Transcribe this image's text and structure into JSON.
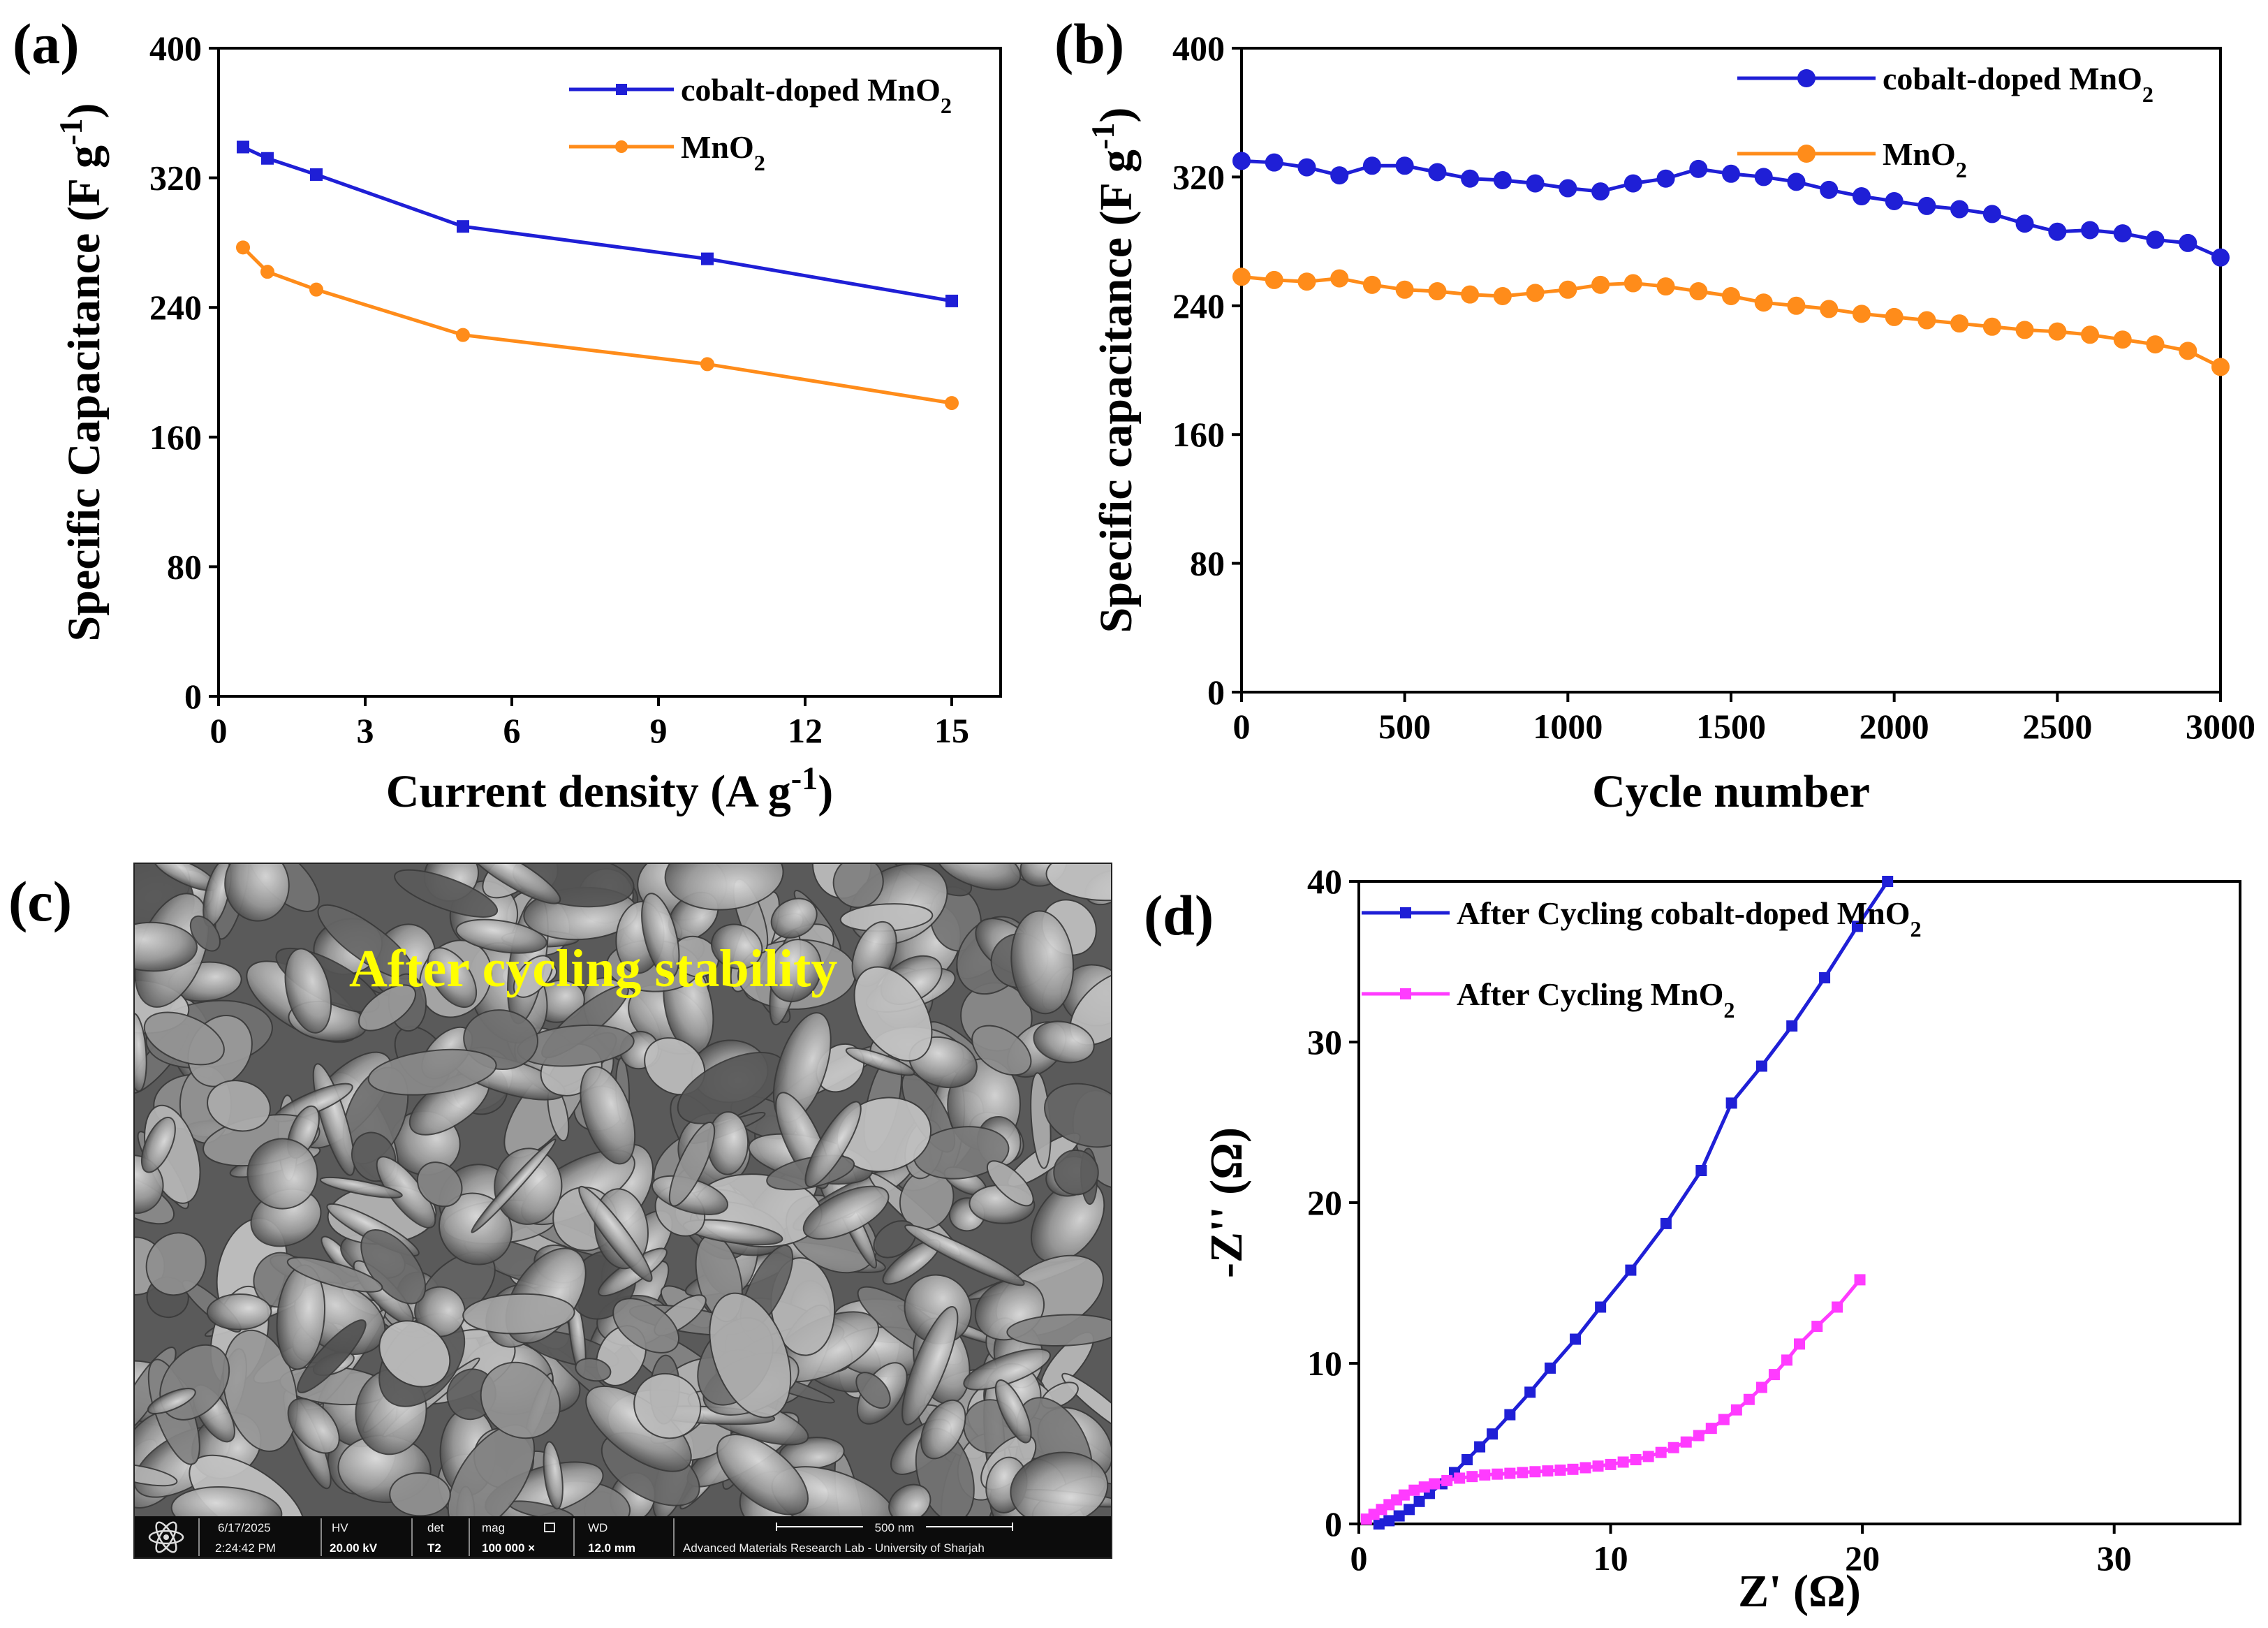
{
  "colors": {
    "blue": "#1f1fd6",
    "orange": "#ff8c1a",
    "magenta": "#ff3bff"
  },
  "panels": {
    "a": {
      "label": "(a)"
    },
    "b": {
      "label": "(b)"
    },
    "c": {
      "label": "(c)",
      "overlay_title": "After cycling stability",
      "info_bar": {
        "date": "6/17/2025",
        "time": "2:24:42 PM",
        "hv_label": "HV",
        "hv_value": "20.00 kV",
        "det_label": "det",
        "det_value": "T2",
        "mag_label": "mag",
        "mag_value": "100 000 ×",
        "wd_label": "WD",
        "wd_value": "12.0 mm",
        "scale_label": "500 nm",
        "lab": "Advanced Materials Research Lab - University of Sharjah"
      }
    },
    "d": {
      "label": "(d)"
    }
  },
  "chart_data": [
    {
      "id": "a",
      "type": "line",
      "xlabel": "Current density (A g-1)",
      "ylabel": "Specific Capacitance (F g-1)",
      "xlim": [
        0,
        16
      ],
      "ylim": [
        0,
        400
      ],
      "xticks": [
        "0",
        "3",
        "6",
        "9",
        "12",
        "15"
      ],
      "yticks": [
        "0",
        "80",
        "160",
        "240",
        "320",
        "400"
      ],
      "legend_position": "top-right",
      "series": [
        {
          "name": "cobalt-doped MnO2",
          "color": "#1f1fd6",
          "marker": "square",
          "x": [
            0.5,
            1,
            2,
            5,
            10,
            15
          ],
          "y": [
            339,
            332,
            322,
            290,
            270,
            244
          ]
        },
        {
          "name": "MnO2",
          "color": "#ff8c1a",
          "marker": "circle",
          "x": [
            0.5,
            1,
            2,
            5,
            10,
            15
          ],
          "y": [
            277,
            262,
            251,
            223,
            205,
            181
          ]
        }
      ]
    },
    {
      "id": "b",
      "type": "line",
      "xlabel": "Cycle number",
      "ylabel": "Specific capacitance (F g-1)",
      "xlim": [
        0,
        3000
      ],
      "ylim": [
        0,
        400
      ],
      "xticks": [
        "0",
        "500",
        "1000",
        "1500",
        "2000",
        "2500",
        "3000"
      ],
      "yticks": [
        "0",
        "80",
        "160",
        "240",
        "320",
        "400"
      ],
      "legend_position": "top-right",
      "series": [
        {
          "name": "cobalt-doped MnO2",
          "color": "#1f1fd6",
          "marker": "circle",
          "x": [
            0,
            100,
            200,
            300,
            400,
            500,
            600,
            700,
            800,
            900,
            1000,
            1100,
            1200,
            1300,
            1400,
            1500,
            1600,
            1700,
            1800,
            1900,
            2000,
            2100,
            2200,
            2300,
            2400,
            2500,
            2600,
            2700,
            2800,
            2900,
            3000
          ],
          "y": [
            330,
            329,
            326,
            321,
            327,
            327,
            323,
            319,
            318,
            316,
            313,
            311,
            316,
            319,
            325,
            322,
            320,
            317,
            312,
            308,
            305,
            302,
            300,
            297,
            291,
            286,
            287,
            285,
            281,
            279,
            270
          ]
        },
        {
          "name": "MnO2",
          "color": "#ff8c1a",
          "marker": "circle",
          "x": [
            0,
            100,
            200,
            300,
            400,
            500,
            600,
            700,
            800,
            900,
            1000,
            1100,
            1200,
            1300,
            1400,
            1500,
            1600,
            1700,
            1800,
            1900,
            2000,
            2100,
            2200,
            2300,
            2400,
            2500,
            2600,
            2700,
            2800,
            2900,
            3000
          ],
          "y": [
            258,
            256,
            255,
            257,
            253,
            250,
            249,
            247,
            246,
            248,
            250,
            253,
            254,
            252,
            249,
            246,
            242,
            240,
            238,
            235,
            233,
            231,
            229,
            227,
            225,
            224,
            222,
            219,
            216,
            212,
            202
          ]
        }
      ]
    },
    {
      "id": "d",
      "type": "line",
      "xlabel": "Z' (Ω)",
      "ylabel": "-Z'' (Ω)",
      "xlim": [
        0,
        35
      ],
      "ylim": [
        0,
        40
      ],
      "xticks": [
        "0",
        "10",
        "20",
        "30"
      ],
      "yticks": [
        "0",
        "10",
        "20",
        "30",
        "40"
      ],
      "legend_position": "top-left",
      "series": [
        {
          "name": "After Cycling cobalt-doped MnO2",
          "color": "#1f1fd6",
          "marker": "square",
          "x": [
            0.8,
            1.2,
            1.6,
            2.0,
            2.4,
            2.8,
            3.3,
            3.8,
            4.3,
            4.8,
            5.3,
            6.0,
            6.8,
            7.6,
            8.6,
            9.6,
            10.8,
            12.2,
            13.6,
            14.8,
            16.0,
            17.2,
            18.5,
            19.8,
            21.0
          ],
          "y": [
            0.0,
            0.2,
            0.5,
            0.9,
            1.4,
            1.9,
            2.5,
            3.2,
            4.0,
            4.8,
            5.6,
            6.8,
            8.2,
            9.7,
            11.5,
            13.5,
            15.8,
            18.7,
            22.0,
            26.2,
            28.5,
            31.0,
            34.0,
            37.2,
            40.0
          ]
        },
        {
          "name": "After Cycling MnO2",
          "color": "#ff3bff",
          "marker": "square",
          "x": [
            0.3,
            0.6,
            0.9,
            1.2,
            1.5,
            1.8,
            2.2,
            2.6,
            3.0,
            3.5,
            4.0,
            4.5,
            5.0,
            5.5,
            6.0,
            6.5,
            7.0,
            7.5,
            8.0,
            8.5,
            9.0,
            9.5,
            10.0,
            10.5,
            11.0,
            11.5,
            12.0,
            12.5,
            13.0,
            13.5,
            14.0,
            14.5,
            15.0,
            15.5,
            16.0,
            16.5,
            17.0,
            17.5,
            18.2,
            19.0,
            19.9
          ],
          "y": [
            0.3,
            0.6,
            0.9,
            1.2,
            1.5,
            1.8,
            2.1,
            2.3,
            2.5,
            2.7,
            2.85,
            2.95,
            3.05,
            3.1,
            3.15,
            3.2,
            3.25,
            3.3,
            3.35,
            3.4,
            3.5,
            3.6,
            3.7,
            3.85,
            4.0,
            4.2,
            4.45,
            4.75,
            5.1,
            5.5,
            5.95,
            6.5,
            7.1,
            7.75,
            8.5,
            9.3,
            10.2,
            11.2,
            12.3,
            13.5,
            15.2
          ]
        }
      ]
    }
  ]
}
